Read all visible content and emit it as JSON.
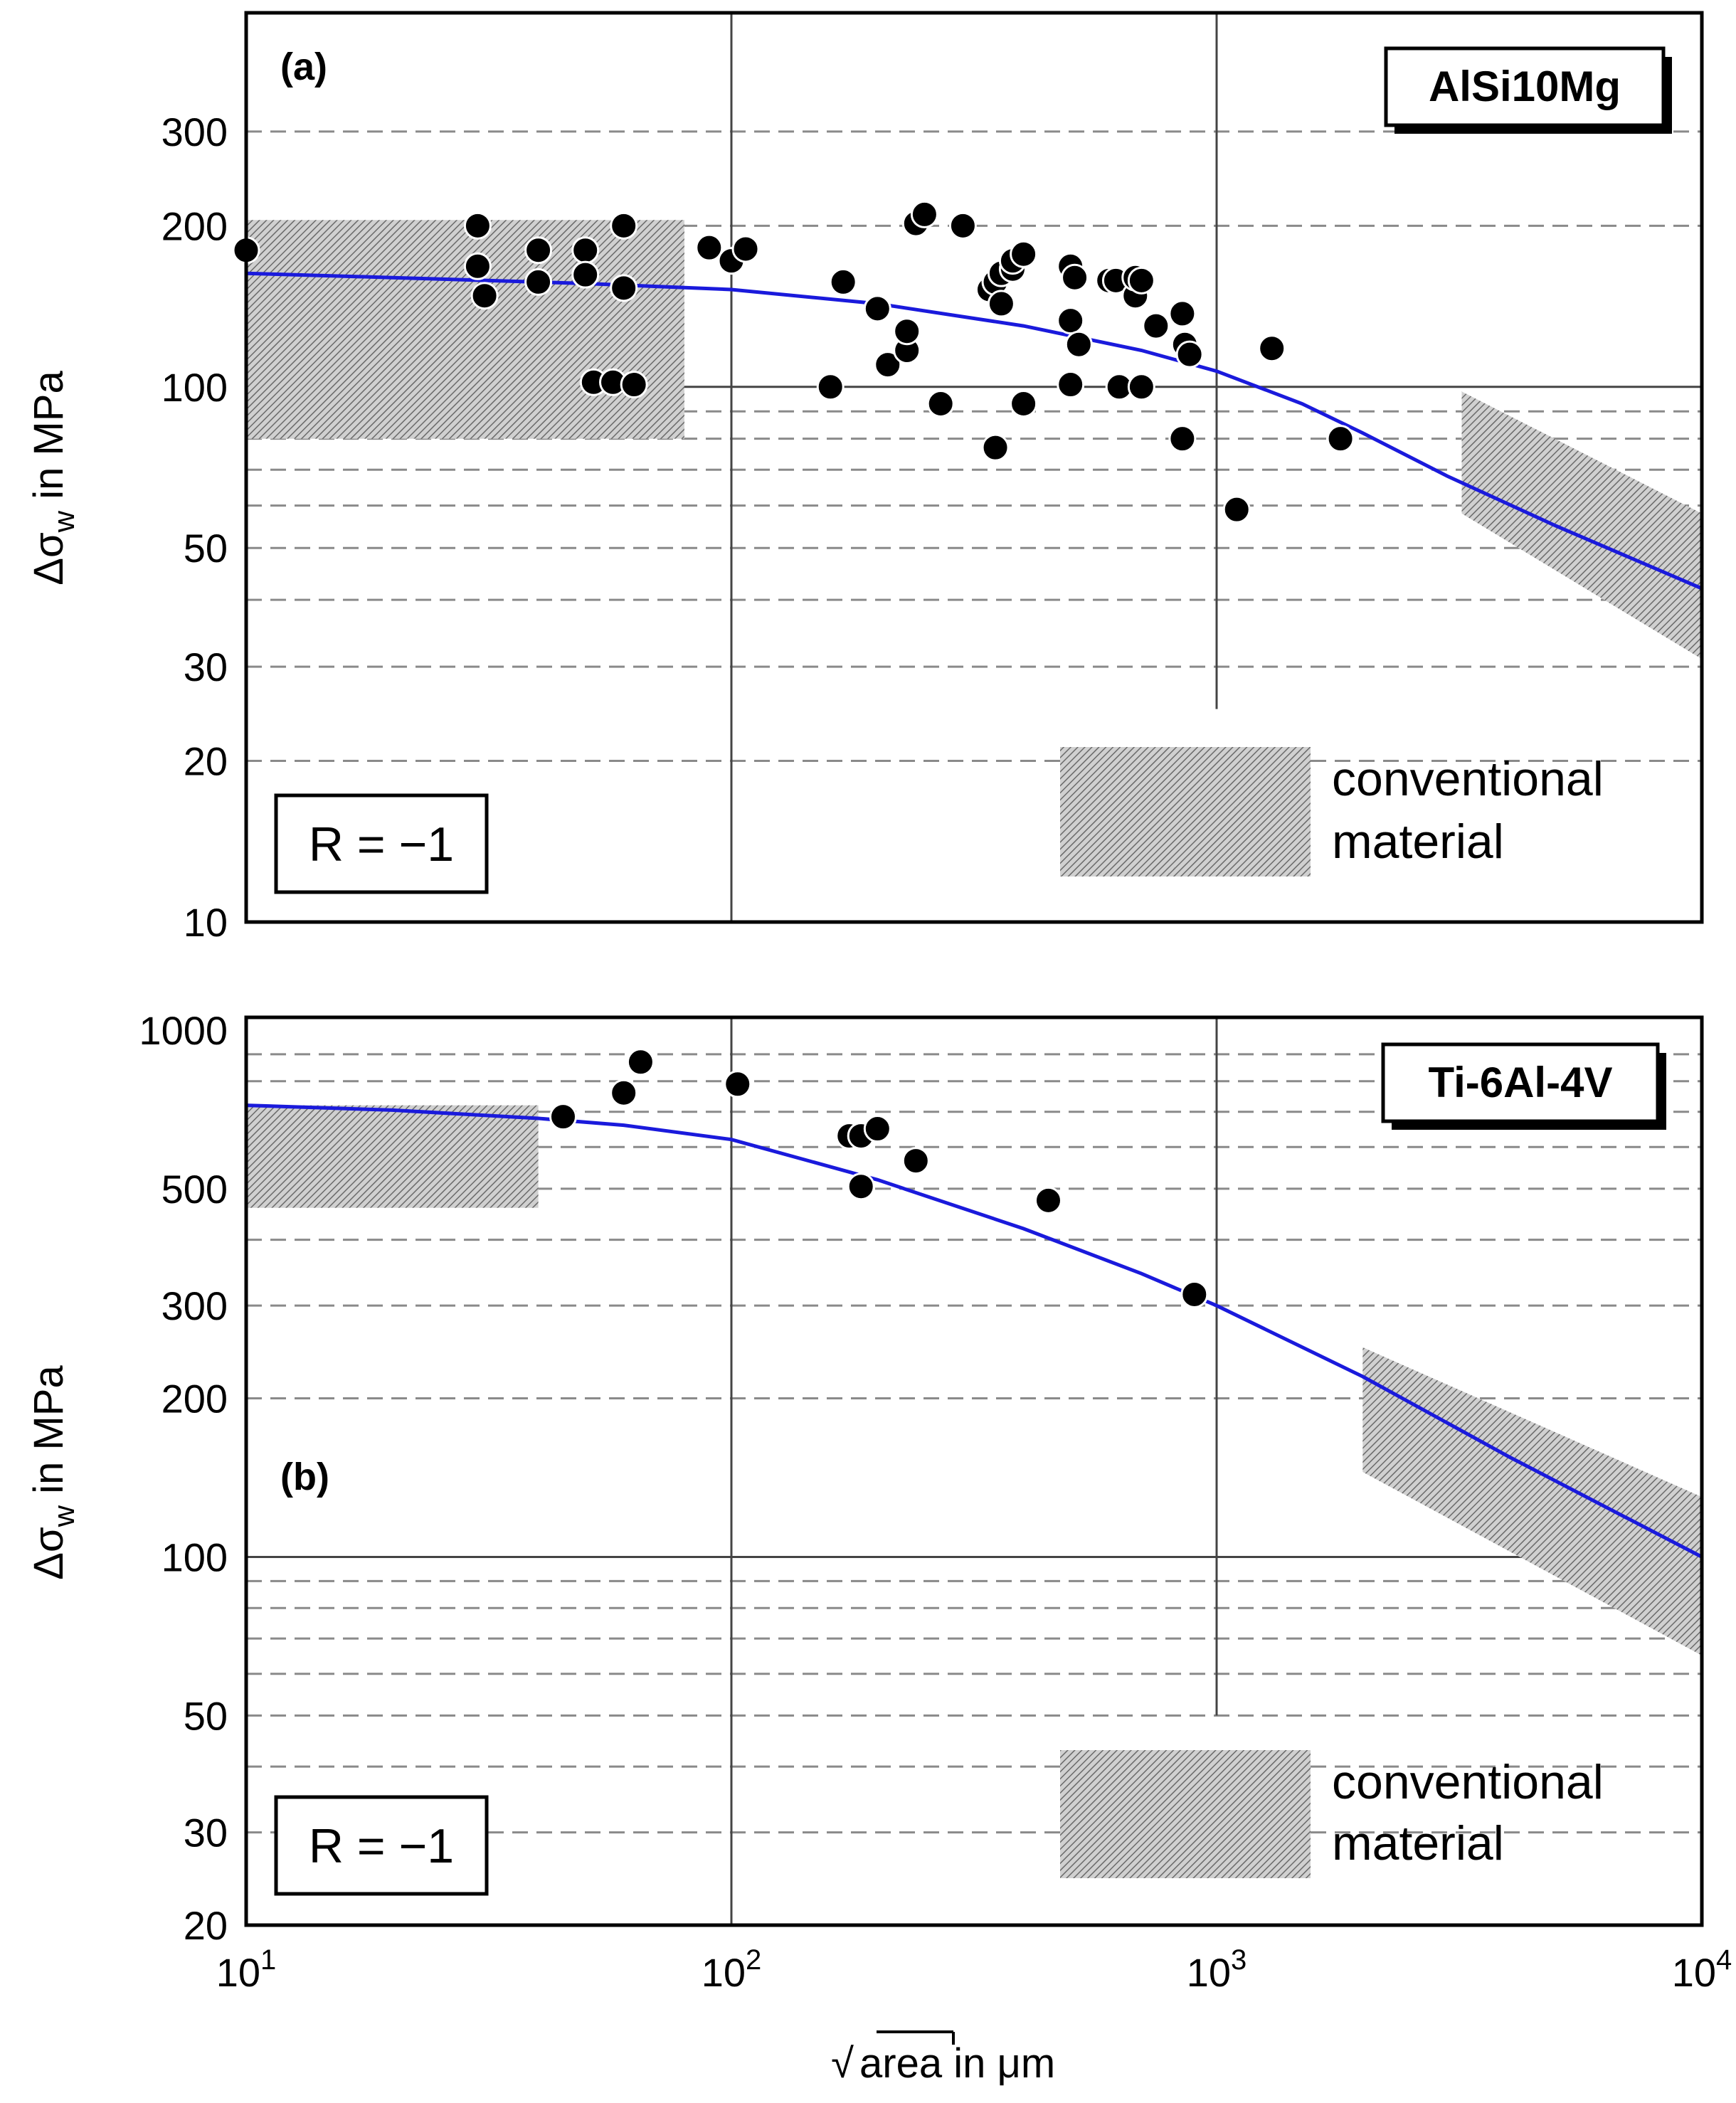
{
  "figure": {
    "xlabel_root": "area",
    "xlabel_suffix": " in μm",
    "x_tick_labels": [
      {
        "base": "10",
        "exp": "1"
      },
      {
        "base": "10",
        "exp": "2"
      },
      {
        "base": "10",
        "exp": "3"
      },
      {
        "base": "10",
        "exp": "4"
      }
    ]
  },
  "chart_data": [
    {
      "type": "scatter",
      "panel_tag": "(a)",
      "material": "AlSi10Mg",
      "ratio_label": "R = −1",
      "legend_label_line1": "conventional",
      "legend_label_line2": "material",
      "ylabel_main": "Δσ",
      "ylabel_sub": "w",
      "ylabel_rest": " in MPa",
      "xscale": "log",
      "yscale": "log",
      "xlim": [
        10,
        10000
      ],
      "ylim": [
        10,
        500
      ],
      "y_ticks": [
        10,
        20,
        30,
        50,
        100,
        200,
        300
      ],
      "y_tick_labels": [
        "10",
        "20",
        "30",
        "50",
        "100",
        "200",
        "300"
      ],
      "y_dashed_grid": [
        20,
        30,
        40,
        50,
        60,
        70,
        80,
        90,
        200,
        300
      ],
      "y_solid_grid": [
        100
      ],
      "x_solid_grid": [
        100,
        1000
      ],
      "curve": {
        "color": "#1a1adc",
        "points": [
          [
            10,
            163
          ],
          [
            20,
            160
          ],
          [
            50,
            156
          ],
          [
            100,
            152
          ],
          [
            200,
            143
          ],
          [
            400,
            130
          ],
          [
            700,
            117
          ],
          [
            1000,
            107
          ],
          [
            1500,
            93
          ],
          [
            2000,
            82
          ],
          [
            3000,
            68
          ],
          [
            5000,
            55
          ],
          [
            10000,
            42
          ]
        ]
      },
      "shaded_regions": [
        {
          "x": [
            10,
            80
          ],
          "y": [
            80,
            205
          ]
        },
        {
          "polygon": [
            [
              3200,
              98
            ],
            [
              10000,
              58
            ],
            [
              10000,
              31
            ],
            [
              3200,
              58
            ]
          ]
        }
      ],
      "points": [
        [
          10,
          180
        ],
        [
          30,
          200
        ],
        [
          30,
          168
        ],
        [
          31,
          148
        ],
        [
          40,
          180
        ],
        [
          40,
          157
        ],
        [
          50,
          180
        ],
        [
          50,
          162
        ],
        [
          60,
          200
        ],
        [
          60,
          153
        ],
        [
          52,
          102
        ],
        [
          57,
          102
        ],
        [
          63,
          101
        ],
        [
          90,
          182
        ],
        [
          100,
          172
        ],
        [
          107,
          181
        ],
        [
          160,
          100
        ],
        [
          170,
          157
        ],
        [
          200,
          140
        ],
        [
          210,
          110
        ],
        [
          230,
          117
        ],
        [
          230,
          127
        ],
        [
          240,
          202
        ],
        [
          250,
          210
        ],
        [
          270,
          93
        ],
        [
          300,
          200
        ],
        [
          340,
          152
        ],
        [
          350,
          157
        ],
        [
          360,
          163
        ],
        [
          380,
          166
        ],
        [
          380,
          172
        ],
        [
          400,
          177
        ],
        [
          360,
          143
        ],
        [
          400,
          93
        ],
        [
          350,
          77
        ],
        [
          500,
          168
        ],
        [
          510,
          160
        ],
        [
          500,
          133
        ],
        [
          520,
          120
        ],
        [
          500,
          101
        ],
        [
          600,
          158
        ],
        [
          620,
          158
        ],
        [
          630,
          100
        ],
        [
          680,
          148
        ],
        [
          680,
          160
        ],
        [
          700,
          158
        ],
        [
          700,
          100
        ],
        [
          750,
          130
        ],
        [
          850,
          137
        ],
        [
          860,
          120
        ],
        [
          880,
          115
        ],
        [
          850,
          80
        ],
        [
          1100,
          59
        ],
        [
          1300,
          118
        ],
        [
          1800,
          80
        ]
      ]
    },
    {
      "type": "scatter",
      "panel_tag": "(b)",
      "material": "Ti-6Al-4V",
      "ratio_label": "R = −1",
      "legend_label_line1": "conventional",
      "legend_label_line2": "material",
      "ylabel_main": "Δσ",
      "ylabel_sub": "w",
      "ylabel_rest": " in MPa",
      "xscale": "log",
      "yscale": "log",
      "xlim": [
        10,
        10000
      ],
      "ylim": [
        20,
        1000
      ],
      "y_ticks": [
        20,
        30,
        50,
        100,
        200,
        300,
        500,
        1000
      ],
      "y_tick_labels": [
        "20",
        "30",
        "50",
        "100",
        "200",
        "300",
        "500",
        "1000"
      ],
      "y_dashed_grid": [
        30,
        40,
        50,
        60,
        70,
        80,
        90,
        200,
        300,
        400,
        500,
        600,
        700,
        800,
        900
      ],
      "y_solid_grid": [
        100
      ],
      "x_solid_grid": [
        100,
        1000
      ],
      "curve": {
        "color": "#1a1adc",
        "points": [
          [
            10,
            720
          ],
          [
            20,
            705
          ],
          [
            40,
            680
          ],
          [
            60,
            660
          ],
          [
            100,
            620
          ],
          [
            200,
            520
          ],
          [
            400,
            420
          ],
          [
            700,
            345
          ],
          [
            1000,
            300
          ],
          [
            2000,
            220
          ],
          [
            4000,
            155
          ],
          [
            10000,
            100
          ]
        ]
      },
      "shaded_regions": [
        {
          "x": [
            10,
            40
          ],
          "y": [
            460,
            720
          ]
        },
        {
          "polygon": [
            [
              2000,
              250
            ],
            [
              10000,
              130
            ],
            [
              10000,
              65
            ],
            [
              2000,
              145
            ]
          ]
        }
      ],
      "points": [
        [
          45,
          685
        ],
        [
          60,
          760
        ],
        [
          65,
          870
        ],
        [
          103,
          790
        ],
        [
          175,
          630
        ],
        [
          185,
          630
        ],
        [
          185,
          505
        ],
        [
          200,
          650
        ],
        [
          240,
          565
        ],
        [
          450,
          475
        ],
        [
          900,
          315
        ]
      ]
    }
  ]
}
